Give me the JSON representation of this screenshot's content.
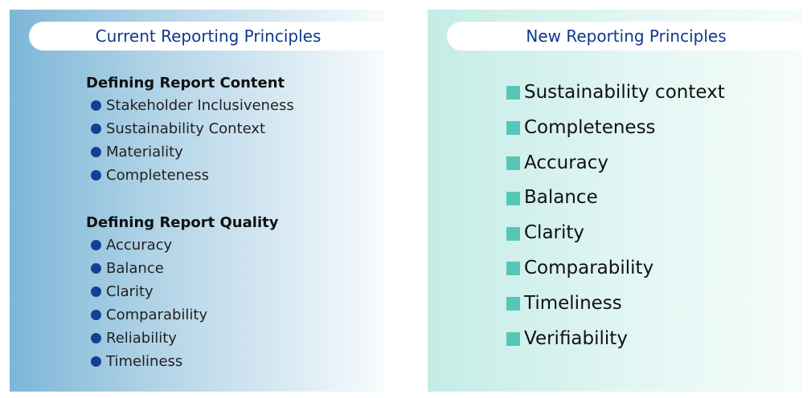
{
  "current": {
    "title": "Current Reporting Principles",
    "sections": [
      {
        "heading": "Defining Report Content",
        "items": [
          "Stakeholder Inclusiveness",
          "Sustainability Context",
          "Materiality",
          "Completeness"
        ]
      },
      {
        "heading": "Defining Report Quality",
        "items": [
          "Accuracy",
          "Balance",
          "Clarity",
          "Comparability",
          "Reliability",
          "Timeliness"
        ]
      }
    ],
    "colors": {
      "bullet": "#153f95",
      "title": "#0d3a8c",
      "gradient_start": "#7db6d7"
    }
  },
  "new": {
    "title": "New Reporting Principles",
    "items": [
      "Sustainability context",
      "Completeness",
      "Accuracy",
      "Balance",
      "Clarity",
      "Comparability",
      "Timeliness",
      "Verifiability"
    ],
    "colors": {
      "bullet": "#56c7b6",
      "gradient_start": "#c4ece6"
    }
  }
}
